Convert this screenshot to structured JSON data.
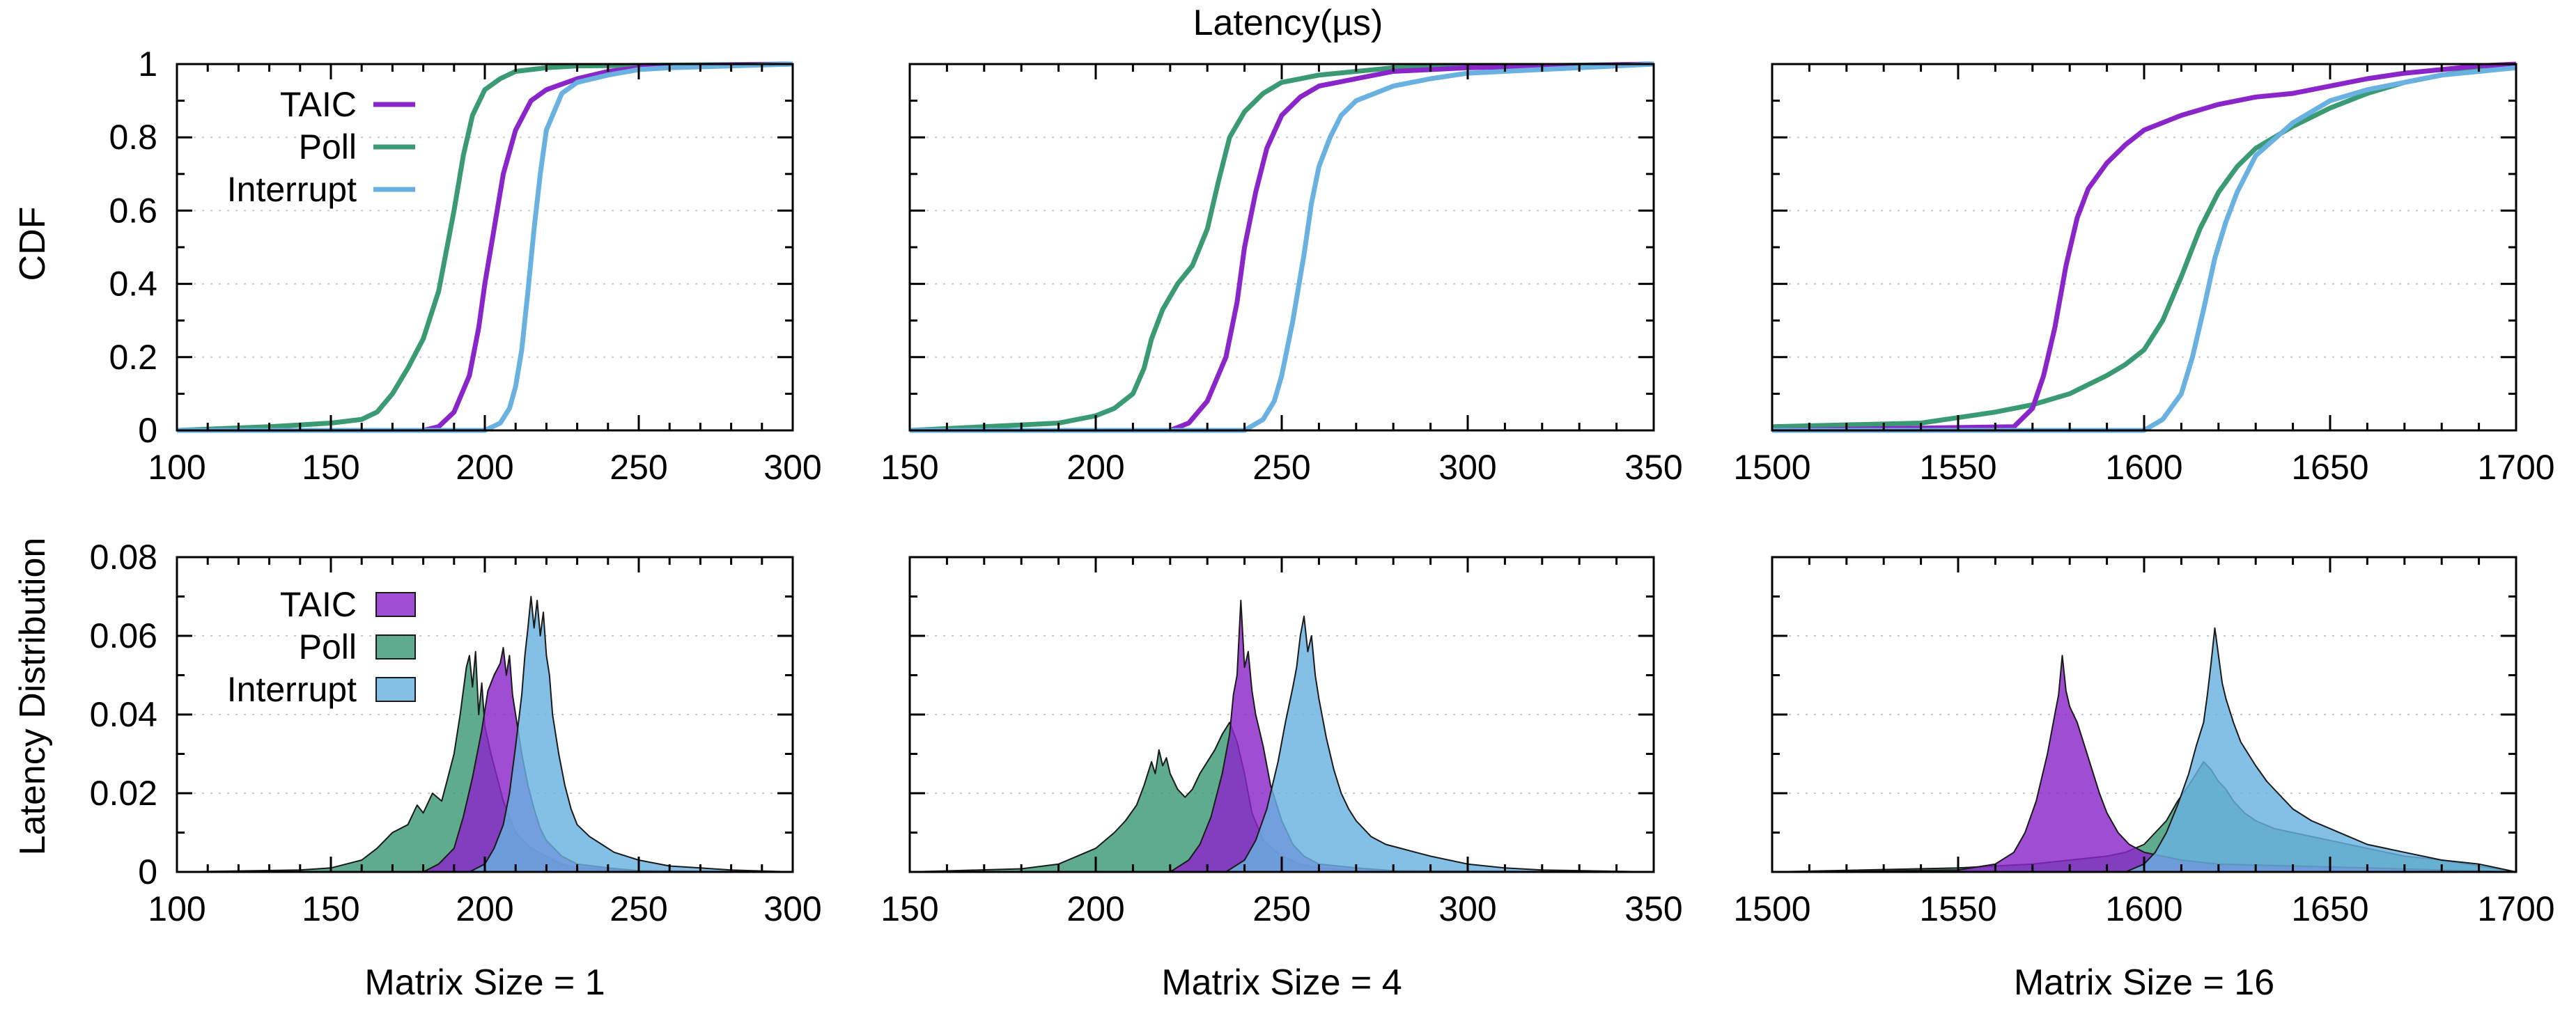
{
  "figure_title": "Latency(µs)",
  "row_labels": {
    "cdf": "CDF",
    "distribution": "Latency Distribution"
  },
  "colors": {
    "TAIC": "#8a26c9",
    "Poll": "#3a9a74",
    "Interrupt": "#69b1e0"
  },
  "chart_data": [
    {
      "type": "line",
      "panel": "cdf-matrix-1",
      "ylabel": "CDF",
      "xlim": [
        100,
        300
      ],
      "ylim": [
        0,
        1
      ],
      "xticks": [
        100,
        150,
        200,
        250,
        300
      ],
      "yticks": [
        0,
        0.2,
        0.4,
        0.6,
        0.8,
        1
      ],
      "ytick_labels": [
        "0",
        "0.2",
        "0.4",
        "0.6",
        "0.8",
        "1"
      ],
      "legend": [
        "TAIC",
        "Poll",
        "Interrupt"
      ],
      "legend_position": "top-left",
      "series": [
        {
          "name": "TAIC",
          "x": [
            100,
            180,
            185,
            190,
            195,
            198,
            200,
            203,
            206,
            210,
            215,
            220,
            230,
            240,
            250,
            260,
            300
          ],
          "y": [
            0,
            0,
            0.01,
            0.05,
            0.15,
            0.28,
            0.4,
            0.55,
            0.7,
            0.82,
            0.9,
            0.93,
            0.96,
            0.98,
            0.99,
            0.995,
            1
          ]
        },
        {
          "name": "Poll",
          "x": [
            100,
            130,
            150,
            160,
            165,
            170,
            175,
            180,
            185,
            190,
            193,
            196,
            200,
            205,
            210,
            220,
            230,
            300
          ],
          "y": [
            0,
            0.01,
            0.02,
            0.03,
            0.05,
            0.1,
            0.17,
            0.25,
            0.38,
            0.6,
            0.75,
            0.86,
            0.93,
            0.96,
            0.98,
            0.99,
            0.995,
            1
          ]
        },
        {
          "name": "Interrupt",
          "x": [
            100,
            200,
            205,
            208,
            210,
            212,
            214,
            216,
            218,
            220,
            225,
            230,
            240,
            250,
            260,
            300
          ],
          "y": [
            0,
            0,
            0.02,
            0.06,
            0.12,
            0.22,
            0.38,
            0.55,
            0.7,
            0.82,
            0.92,
            0.95,
            0.97,
            0.985,
            0.99,
            1
          ]
        }
      ]
    },
    {
      "type": "line",
      "panel": "cdf-matrix-4",
      "xlim": [
        150,
        350
      ],
      "ylim": [
        0,
        1
      ],
      "xticks": [
        150,
        200,
        250,
        300,
        350
      ],
      "yticks": [
        0,
        0.2,
        0.4,
        0.6,
        0.8,
        1
      ],
      "series": [
        {
          "name": "TAIC",
          "x": [
            150,
            220,
            225,
            230,
            235,
            238,
            240,
            243,
            246,
            250,
            255,
            260,
            270,
            280,
            300,
            350
          ],
          "y": [
            0,
            0,
            0.02,
            0.08,
            0.2,
            0.35,
            0.5,
            0.65,
            0.77,
            0.86,
            0.91,
            0.94,
            0.96,
            0.98,
            0.99,
            1
          ]
        },
        {
          "name": "Poll",
          "x": [
            150,
            190,
            200,
            205,
            210,
            213,
            215,
            218,
            222,
            226,
            230,
            233,
            236,
            240,
            245,
            250,
            260,
            280,
            350
          ],
          "y": [
            0,
            0.02,
            0.04,
            0.06,
            0.1,
            0.17,
            0.25,
            0.33,
            0.4,
            0.45,
            0.55,
            0.68,
            0.8,
            0.87,
            0.92,
            0.95,
            0.97,
            0.99,
            1
          ]
        },
        {
          "name": "Interrupt",
          "x": [
            150,
            240,
            245,
            248,
            250,
            253,
            256,
            258,
            260,
            263,
            266,
            270,
            280,
            290,
            300,
            350
          ],
          "y": [
            0,
            0,
            0.03,
            0.08,
            0.15,
            0.3,
            0.48,
            0.62,
            0.72,
            0.8,
            0.86,
            0.9,
            0.94,
            0.96,
            0.975,
            1
          ]
        }
      ]
    },
    {
      "type": "line",
      "panel": "cdf-matrix-16",
      "xlim": [
        1500,
        1700
      ],
      "ylim": [
        0,
        1
      ],
      "xticks": [
        1500,
        1550,
        1600,
        1650,
        1700
      ],
      "yticks": [
        0,
        0.2,
        0.4,
        0.6,
        0.8,
        1
      ],
      "series": [
        {
          "name": "TAIC",
          "x": [
            1500,
            1565,
            1570,
            1573,
            1576,
            1579,
            1582,
            1585,
            1590,
            1595,
            1600,
            1610,
            1620,
            1630,
            1640,
            1650,
            1660,
            1670,
            1680,
            1690,
            1700
          ],
          "y": [
            0,
            0.01,
            0.06,
            0.15,
            0.28,
            0.45,
            0.58,
            0.66,
            0.73,
            0.78,
            0.82,
            0.86,
            0.89,
            0.91,
            0.92,
            0.94,
            0.96,
            0.975,
            0.985,
            0.995,
            1
          ]
        },
        {
          "name": "Poll",
          "x": [
            1500,
            1540,
            1560,
            1570,
            1580,
            1590,
            1595,
            1600,
            1605,
            1610,
            1615,
            1620,
            1625,
            1630,
            1640,
            1650,
            1660,
            1670,
            1680,
            1690,
            1700
          ],
          "y": [
            0.01,
            0.02,
            0.05,
            0.07,
            0.1,
            0.15,
            0.18,
            0.22,
            0.3,
            0.42,
            0.55,
            0.65,
            0.72,
            0.77,
            0.83,
            0.88,
            0.92,
            0.95,
            0.97,
            0.985,
            0.995
          ]
        },
        {
          "name": "Interrupt",
          "x": [
            1500,
            1600,
            1605,
            1610,
            1613,
            1616,
            1619,
            1622,
            1625,
            1630,
            1640,
            1650,
            1660,
            1670,
            1680,
            1700
          ],
          "y": [
            0,
            0,
            0.03,
            0.1,
            0.2,
            0.33,
            0.47,
            0.57,
            0.65,
            0.75,
            0.84,
            0.9,
            0.93,
            0.95,
            0.97,
            0.99
          ]
        }
      ]
    },
    {
      "type": "area",
      "panel": "dist-matrix-1",
      "ylabel": "Latency Distribution",
      "xlabel": "Matrix Size = 1",
      "xlim": [
        100,
        300
      ],
      "ylim": [
        0,
        0.08
      ],
      "xticks": [
        100,
        150,
        200,
        250,
        300
      ],
      "yticks": [
        0,
        0.02,
        0.04,
        0.06,
        0.08
      ],
      "ytick_labels": [
        "0",
        "0.02",
        "0.04",
        "0.06",
        "0.08"
      ],
      "legend": [
        "TAIC",
        "Poll",
        "Interrupt"
      ],
      "legend_position": "top-left",
      "series": [
        {
          "name": "Poll",
          "x": [
            100,
            140,
            150,
            160,
            165,
            170,
            175,
            178,
            180,
            183,
            186,
            188,
            190,
            192,
            194,
            195,
            196,
            197,
            198,
            199,
            200,
            202,
            204,
            206,
            208,
            210,
            215,
            220,
            225,
            230,
            250,
            300
          ],
          "y": [
            0,
            0.0005,
            0.001,
            0.003,
            0.006,
            0.01,
            0.012,
            0.017,
            0.015,
            0.02,
            0.018,
            0.024,
            0.03,
            0.04,
            0.052,
            0.055,
            0.047,
            0.056,
            0.04,
            0.048,
            0.037,
            0.03,
            0.024,
            0.018,
            0.014,
            0.01,
            0.006,
            0.004,
            0.002,
            0.001,
            0.0003,
            0
          ]
        },
        {
          "name": "TAIC",
          "x": [
            100,
            180,
            185,
            190,
            193,
            196,
            199,
            201,
            203,
            205,
            206,
            207,
            208,
            209,
            210,
            212,
            214,
            216,
            218,
            220,
            225,
            230,
            240,
            250,
            300
          ],
          "y": [
            0,
            0,
            0.002,
            0.006,
            0.014,
            0.024,
            0.036,
            0.046,
            0.05,
            0.053,
            0.057,
            0.05,
            0.055,
            0.045,
            0.04,
            0.03,
            0.022,
            0.016,
            0.011,
            0.008,
            0.004,
            0.002,
            0.001,
            0.0003,
            0
          ]
        },
        {
          "name": "Interrupt",
          "x": [
            100,
            195,
            200,
            203,
            206,
            208,
            210,
            212,
            213,
            214,
            215,
            216,
            217,
            218,
            219,
            220,
            221,
            222,
            224,
            226,
            228,
            230,
            234,
            238,
            242,
            246,
            250,
            260,
            270,
            280,
            300
          ],
          "y": [
            0,
            0,
            0.002,
            0.006,
            0.012,
            0.02,
            0.032,
            0.045,
            0.055,
            0.062,
            0.07,
            0.062,
            0.069,
            0.06,
            0.066,
            0.055,
            0.05,
            0.04,
            0.03,
            0.022,
            0.016,
            0.012,
            0.009,
            0.007,
            0.005,
            0.004,
            0.003,
            0.0015,
            0.001,
            0.0005,
            0
          ]
        }
      ]
    },
    {
      "type": "area",
      "panel": "dist-matrix-4",
      "xlabel": "Matrix Size = 4",
      "xlim": [
        150,
        350
      ],
      "ylim": [
        0,
        0.08
      ],
      "xticks": [
        150,
        200,
        250,
        300,
        350
      ],
      "yticks": [
        0,
        0.02,
        0.04,
        0.06,
        0.08
      ],
      "series": [
        {
          "name": "Poll",
          "x": [
            150,
            180,
            190,
            195,
            200,
            205,
            208,
            211,
            213,
            215,
            216,
            217,
            218,
            219,
            220,
            222,
            224,
            226,
            228,
            230,
            232,
            234,
            236,
            238,
            240,
            242,
            245,
            250,
            255,
            260,
            270,
            280,
            350
          ],
          "y": [
            0,
            0.0008,
            0.002,
            0.004,
            0.006,
            0.01,
            0.013,
            0.017,
            0.022,
            0.028,
            0.025,
            0.031,
            0.027,
            0.029,
            0.025,
            0.021,
            0.019,
            0.021,
            0.025,
            0.028,
            0.031,
            0.035,
            0.038,
            0.033,
            0.025,
            0.015,
            0.008,
            0.004,
            0.002,
            0.001,
            0.0004,
            0.0002,
            0
          ]
        },
        {
          "name": "TAIC",
          "x": [
            150,
            220,
            225,
            228,
            231,
            234,
            236,
            237,
            238,
            239,
            240,
            241,
            242,
            243,
            245,
            247,
            250,
            253,
            256,
            260,
            270,
            280,
            350
          ],
          "y": [
            0,
            0,
            0.003,
            0.007,
            0.014,
            0.025,
            0.035,
            0.045,
            0.05,
            0.069,
            0.052,
            0.056,
            0.046,
            0.04,
            0.032,
            0.022,
            0.013,
            0.007,
            0.004,
            0.002,
            0.001,
            0.0003,
            0
          ]
        },
        {
          "name": "Interrupt",
          "x": [
            150,
            235,
            240,
            243,
            246,
            249,
            251,
            253,
            254,
            255,
            256,
            257,
            258,
            259,
            260,
            262,
            264,
            266,
            268,
            270,
            274,
            278,
            282,
            286,
            290,
            300,
            310,
            320,
            350
          ],
          "y": [
            0,
            0,
            0.003,
            0.008,
            0.016,
            0.028,
            0.038,
            0.047,
            0.052,
            0.06,
            0.065,
            0.056,
            0.06,
            0.05,
            0.044,
            0.034,
            0.026,
            0.02,
            0.016,
            0.013,
            0.009,
            0.007,
            0.006,
            0.005,
            0.004,
            0.002,
            0.001,
            0.0005,
            0
          ]
        }
      ]
    },
    {
      "type": "area",
      "panel": "dist-matrix-16",
      "xlabel": "Matrix Size = 16",
      "xlim": [
        1500,
        1700
      ],
      "ylim": [
        0,
        0.08
      ],
      "xticks": [
        1500,
        1550,
        1600,
        1650,
        1700
      ],
      "yticks": [
        0,
        0.02,
        0.04,
        0.06,
        0.08
      ],
      "series": [
        {
          "name": "TAIC",
          "x": [
            1500,
            1550,
            1560,
            1565,
            1568,
            1571,
            1574,
            1576,
            1577,
            1578,
            1579,
            1580,
            1582,
            1584,
            1586,
            1588,
            1590,
            1593,
            1596,
            1600,
            1605,
            1610,
            1620,
            1640,
            1660,
            1680,
            1700
          ],
          "y": [
            0,
            0.0005,
            0.002,
            0.005,
            0.01,
            0.018,
            0.03,
            0.04,
            0.045,
            0.055,
            0.046,
            0.042,
            0.038,
            0.032,
            0.026,
            0.02,
            0.015,
            0.01,
            0.007,
            0.005,
            0.004,
            0.003,
            0.002,
            0.0015,
            0.001,
            0.0005,
            0
          ]
        },
        {
          "name": "Poll",
          "x": [
            1500,
            1550,
            1570,
            1580,
            1590,
            1595,
            1600,
            1603,
            1606,
            1609,
            1612,
            1614,
            1616,
            1618,
            1620,
            1622,
            1624,
            1627,
            1630,
            1635,
            1640,
            1650,
            1660,
            1670,
            1680,
            1690,
            1700
          ],
          "y": [
            0,
            0.001,
            0.002,
            0.003,
            0.004,
            0.005,
            0.007,
            0.01,
            0.013,
            0.018,
            0.022,
            0.025,
            0.028,
            0.026,
            0.023,
            0.021,
            0.018,
            0.015,
            0.013,
            0.011,
            0.01,
            0.008,
            0.006,
            0.004,
            0.003,
            0.0015,
            0
          ]
        },
        {
          "name": "Interrupt",
          "x": [
            1500,
            1595,
            1600,
            1603,
            1606,
            1609,
            1612,
            1614,
            1616,
            1617,
            1618,
            1619,
            1620,
            1621,
            1622,
            1624,
            1626,
            1628,
            1630,
            1633,
            1636,
            1640,
            1645,
            1650,
            1655,
            1660,
            1670,
            1680,
            1690,
            1700
          ],
          "y": [
            0,
            0,
            0.002,
            0.005,
            0.01,
            0.017,
            0.025,
            0.032,
            0.038,
            0.045,
            0.053,
            0.062,
            0.055,
            0.048,
            0.044,
            0.038,
            0.033,
            0.03,
            0.027,
            0.023,
            0.02,
            0.016,
            0.013,
            0.011,
            0.009,
            0.007,
            0.005,
            0.003,
            0.002,
            0
          ]
        }
      ]
    }
  ]
}
